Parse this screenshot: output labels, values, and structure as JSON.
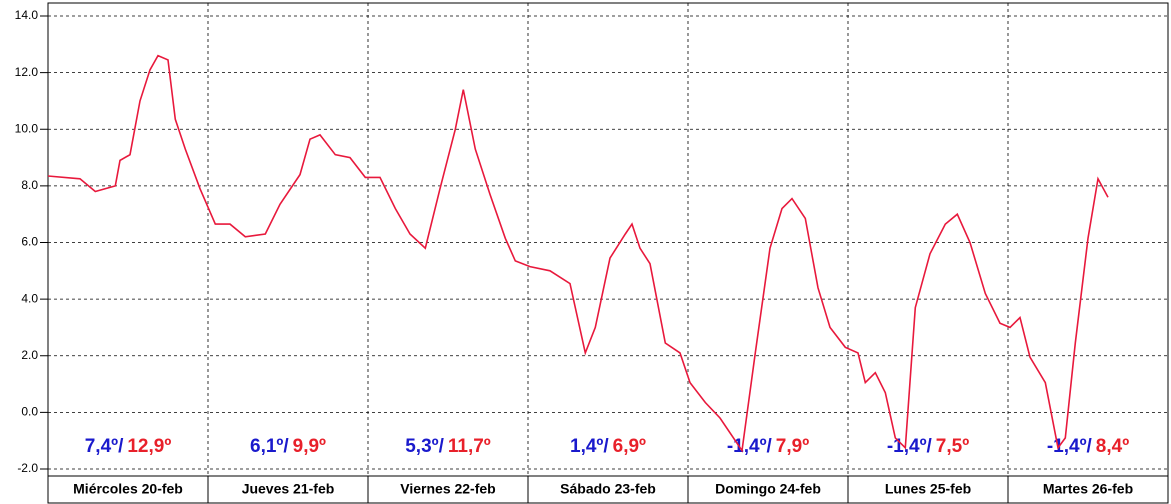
{
  "chart_data": {
    "type": "line",
    "categories": [
      "Miércoles 20-feb",
      "Jueves 21-feb",
      "Viernes 22-feb",
      "Sábado 23-feb",
      "Domingo 24-feb",
      "Lunes 25-feb",
      "Martes 26-feb"
    ],
    "min_labels": [
      "7,4º/",
      "6,1º/",
      "5,3º/",
      "1,4º/",
      "-1,4º/",
      "-1,4º/",
      "-1,4º/"
    ],
    "max_labels": [
      "12,9º",
      "9,9º",
      "11,7º",
      "6,9º",
      "7,9º",
      "7,5º",
      "8,4º"
    ],
    "min_color": "#1a1acc",
    "max_color": "#e8202a",
    "xlim": [
      0,
      168
    ],
    "ylim": [
      -2,
      14
    ],
    "yticks": [
      {
        "value": 14,
        "label": "14.0"
      },
      {
        "value": 12,
        "label": "12.0"
      },
      {
        "value": 10,
        "label": "10.0"
      },
      {
        "value": 8,
        "label": "8.0"
      },
      {
        "value": 6,
        "label": "6.0"
      },
      {
        "value": 4,
        "label": "4.0"
      },
      {
        "value": 2,
        "label": "2.0"
      },
      {
        "value": 0,
        "label": "0.0"
      },
      {
        "value": -2,
        "label": "-2.0"
      }
    ],
    "grid": true,
    "series": [
      {
        "color": "#e8193c",
        "x": [
          0,
          4.8,
          7.1,
          10.1,
          10.8,
          12.3,
          13.8,
          15.3,
          16.5,
          18,
          19.1,
          20.6,
          22.8,
          25.1,
          27.3,
          29.6,
          32.6,
          34.8,
          37.8,
          39.3,
          40.8,
          43.1,
          45.3,
          47.6,
          49.8,
          52.1,
          54.3,
          56.6,
          58.8,
          61.1,
          62.3,
          64.1,
          66.3,
          68.6,
          70.1,
          72.3,
          75.3,
          78.3,
          80.6,
          82.1,
          84.3,
          86.6,
          87.6,
          88.8,
          90.3,
          92.6,
          94.8,
          96.3,
          98.6,
          100.8,
          104.1,
          106.1,
          108.3,
          110.1,
          111.6,
          113.6,
          115.5,
          117.3,
          119.6,
          121.5,
          122.6,
          124.1,
          125.6,
          127.1,
          128.6,
          130.1,
          132.3,
          134.6,
          136.4,
          138.3,
          140.6,
          142.8,
          144.3,
          145.8,
          147.3,
          149.6,
          151.5,
          152.6,
          154.1,
          156,
          157.5,
          159
        ],
        "values": [
          8.35,
          8.25,
          7.8,
          8.0,
          8.9,
          9.1,
          11.0,
          12.1,
          12.6,
          12.45,
          10.35,
          9.3,
          7.9,
          6.65,
          6.65,
          6.2,
          6.3,
          7.35,
          8.4,
          9.65,
          9.8,
          9.1,
          9.0,
          8.3,
          8.3,
          7.2,
          6.3,
          5.8,
          7.9,
          10.0,
          11.4,
          9.3,
          7.7,
          6.15,
          5.35,
          5.15,
          5.0,
          4.55,
          2.1,
          3.0,
          5.45,
          6.3,
          6.65,
          5.8,
          5.25,
          2.45,
          2.1,
          1.05,
          0.35,
          -0.2,
          -1.35,
          2.1,
          5.8,
          7.2,
          7.55,
          6.85,
          4.4,
          3.0,
          2.3,
          2.1,
          1.05,
          1.4,
          0.7,
          -0.9,
          -1.25,
          3.7,
          5.6,
          6.65,
          7.0,
          6.0,
          4.2,
          3.15,
          3.0,
          3.35,
          1.95,
          1.05,
          -1.25,
          -0.9,
          2.45,
          6.15,
          8.25,
          7.6
        ]
      }
    ]
  }
}
